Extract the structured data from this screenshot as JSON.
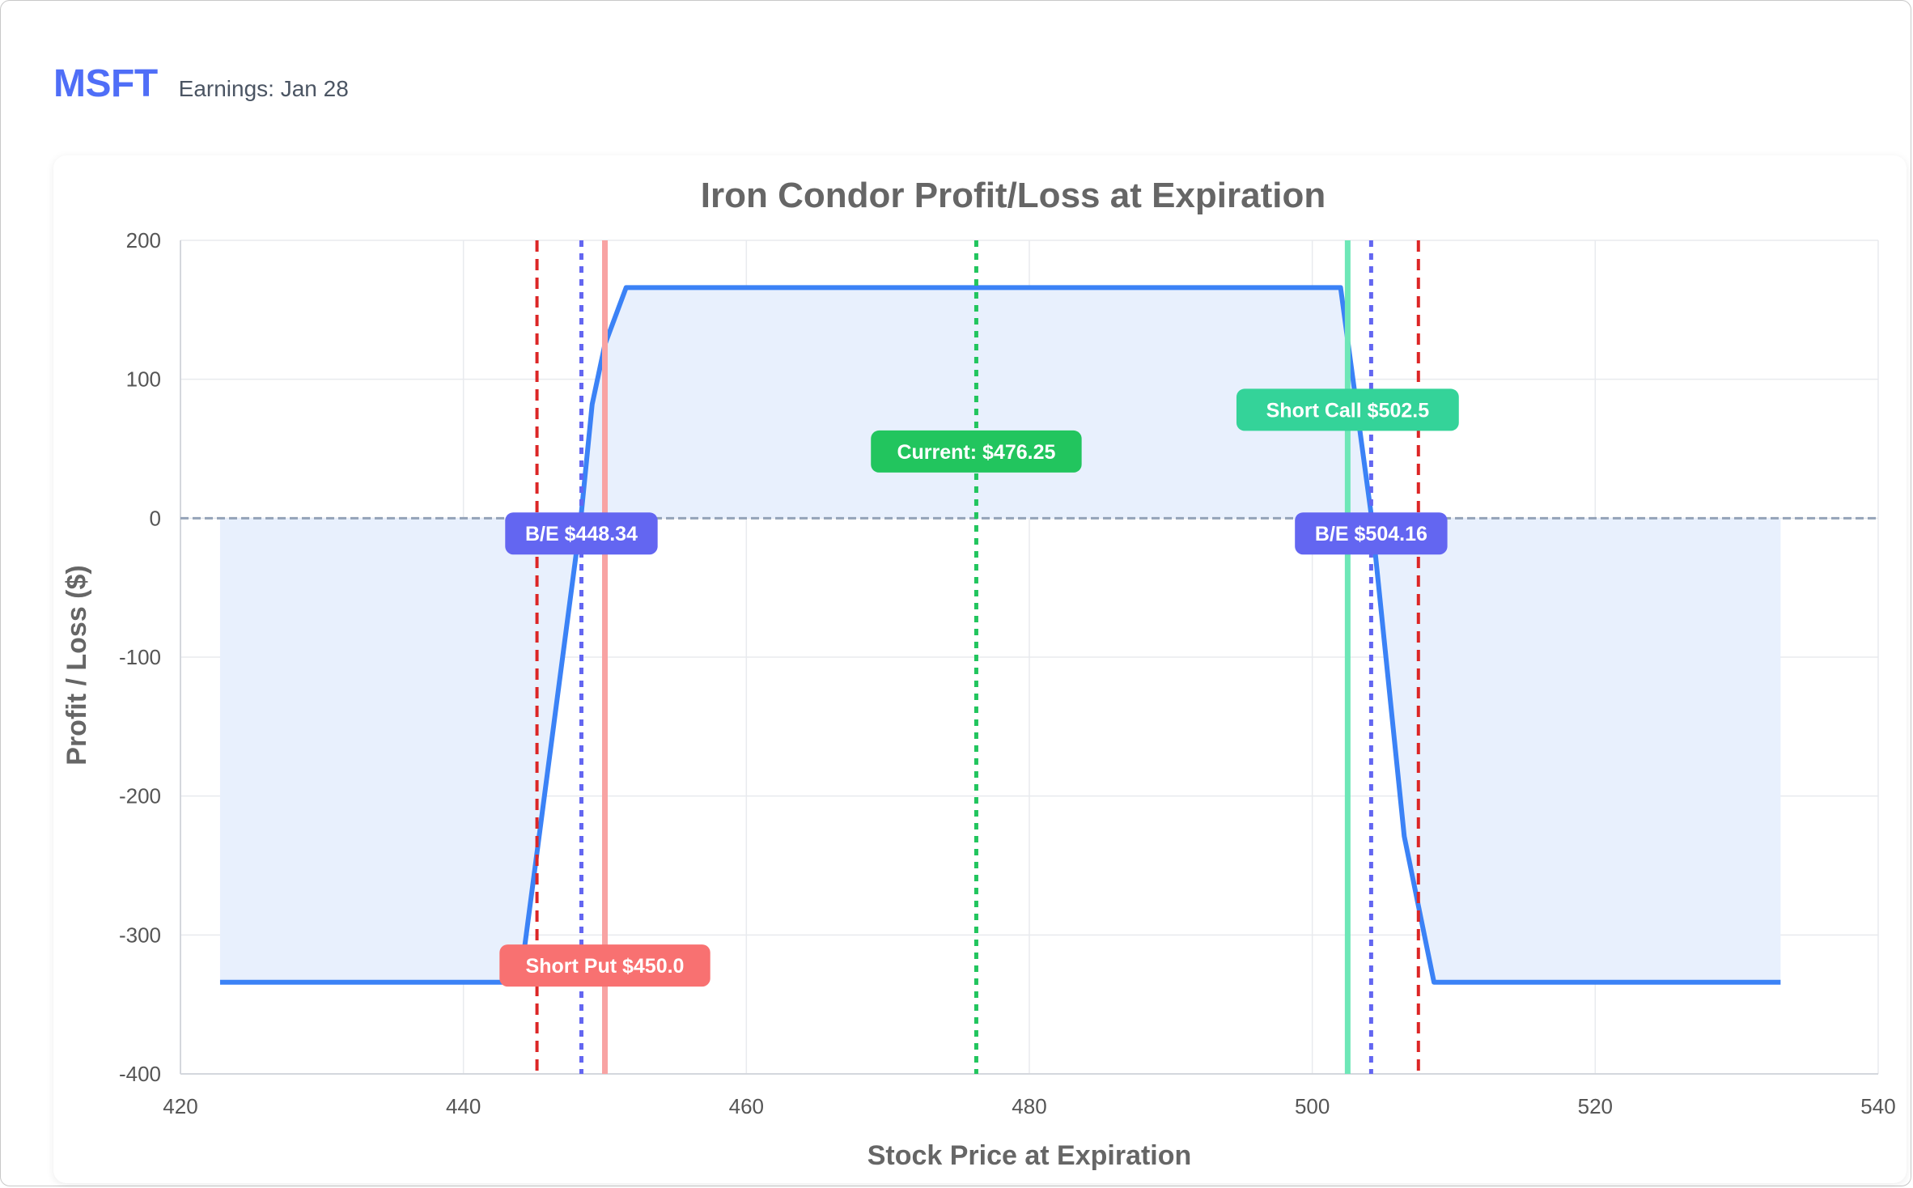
{
  "header": {
    "ticker": "MSFT",
    "earnings": "Earnings: Jan 28"
  },
  "chart_data": {
    "type": "line",
    "title": "Iron Condor Profit/Loss at Expiration",
    "xlabel": "Stock Price at Expiration",
    "ylabel": "Profit / Loss ($)",
    "xlim": [
      420,
      540
    ],
    "ylim": [
      -400,
      200
    ],
    "x_ticks": [
      420,
      440,
      460,
      480,
      500,
      520,
      540
    ],
    "y_ticks": [
      200,
      100,
      0,
      -100,
      -200,
      -300,
      -400
    ],
    "grid": true,
    "legend": "none",
    "series": [
      {
        "color": "#3b82f6",
        "fill": "#e8f0fd",
        "x": [
          422.8,
          444.0,
          448.3,
          449.1,
          450.0,
          451.5,
          502.0,
          504.2,
          506.5,
          508.6,
          533.1
        ],
        "y": [
          -334,
          -334,
          0,
          82,
          125,
          166,
          166,
          0,
          -229,
          -334,
          -334
        ]
      }
    ],
    "reference_lines": [
      {
        "x": 445.2,
        "color": "#dc2626",
        "style": "dashed"
      },
      {
        "x": 448.34,
        "color": "#6366f1",
        "style": "dotted",
        "label": "B/E $448.34",
        "label_color": "#6366f1",
        "label_y": -11
      },
      {
        "x": 450.0,
        "color": "#f8a3a3",
        "style": "solid",
        "label": "Short Put $450.0",
        "label_color": "#f87171",
        "label_y": -322
      },
      {
        "x": 476.25,
        "color": "#22c55e",
        "style": "dotted",
        "label": "Current: $476.25",
        "label_color": "#22c55e",
        "label_y": 48
      },
      {
        "x": 502.5,
        "color": "#6ee7b7",
        "style": "solid",
        "label": "Short Call $502.5",
        "label_color": "#34d399",
        "label_y": 78
      },
      {
        "x": 504.16,
        "color": "#6366f1",
        "style": "dotted",
        "label": "B/E $504.16",
        "label_color": "#6366f1",
        "label_y": -11
      },
      {
        "x": 507.5,
        "color": "#dc2626",
        "style": "dashed"
      }
    ],
    "zero_line": {
      "y": 0,
      "color": "#94a3b8",
      "style": "dashed"
    }
  }
}
